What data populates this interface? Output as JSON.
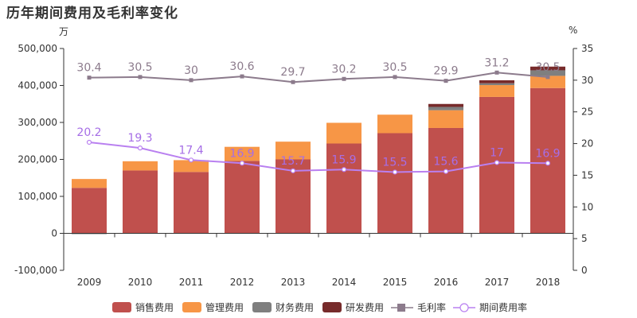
{
  "title": "历年期间费用及毛利率变化",
  "chart_data": {
    "type": "bar",
    "stacked": true,
    "title": "历年期间费用及毛利率变化",
    "y_left_unit": "万",
    "y_right_unit": "%",
    "categories": [
      "2009",
      "2010",
      "2011",
      "2012",
      "2013",
      "2014",
      "2015",
      "2016",
      "2017",
      "2018"
    ],
    "y_left_range": [
      -100000,
      500000
    ],
    "y_left_ticks": [
      -100000,
      0,
      100000,
      200000,
      300000,
      400000,
      500000
    ],
    "y_left_tick_labels": [
      "-100,000",
      "0",
      "100,000",
      "200,000",
      "300,000",
      "400,000",
      "500,000"
    ],
    "y_right_range": [
      0,
      35
    ],
    "y_right_ticks": [
      0,
      5,
      10,
      15,
      20,
      25,
      30,
      35
    ],
    "series": [
      {
        "name": "销售费用",
        "kind": "bar",
        "color": "#c0504d",
        "values": [
          123000,
          170000,
          166000,
          196000,
          200000,
          243000,
          271000,
          285000,
          369000,
          393000
        ]
      },
      {
        "name": "管理费用",
        "kind": "bar",
        "color": "#f79646",
        "values": [
          24000,
          25000,
          32000,
          38000,
          48000,
          56000,
          50000,
          48000,
          32000,
          33000
        ]
      },
      {
        "name": "财务费用",
        "kind": "bar",
        "color": "#7f7f7f",
        "values": [
          -2000,
          0,
          0,
          0,
          0,
          0,
          0,
          9000,
          5000,
          15000
        ]
      },
      {
        "name": "研发费用",
        "kind": "bar",
        "color": "#772b2b",
        "values": [
          0,
          0,
          0,
          0,
          0,
          0,
          0,
          8000,
          8000,
          10000
        ]
      },
      {
        "name": "毛利率",
        "kind": "line",
        "axis": "right",
        "color": "#8c7b8c",
        "label_color": "#8c7b8c",
        "values": [
          30.4,
          30.5,
          30,
          30.6,
          29.7,
          30.2,
          30.5,
          29.9,
          31.2,
          30.5
        ],
        "labels": [
          "30.4",
          "30.5",
          "30",
          "30.6",
          "29.7",
          "30.2",
          "30.5",
          "29.9",
          "31.2",
          "30.5"
        ]
      },
      {
        "name": "期间费用率",
        "kind": "line",
        "axis": "right",
        "color": "#b980f0",
        "label_color": "#a66ee6",
        "values": [
          20.2,
          19.3,
          17.4,
          16.9,
          15.7,
          15.9,
          15.5,
          15.6,
          17,
          16.9
        ],
        "labels": [
          "20.2",
          "19.3",
          "17.4",
          "16.9",
          "15.7",
          "15.9",
          "15.5",
          "15.6",
          "17",
          "16.9"
        ]
      }
    ],
    "legend_position": "bottom",
    "grid": false
  }
}
